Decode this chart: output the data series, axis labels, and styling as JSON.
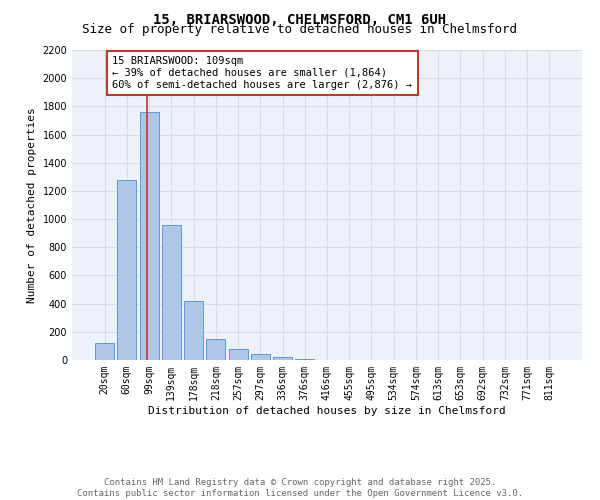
{
  "title_line1": "15, BRIARSWOOD, CHELMSFORD, CM1 6UH",
  "title_line2": "Size of property relative to detached houses in Chelmsford",
  "xlabel": "Distribution of detached houses by size in Chelmsford",
  "ylabel": "Number of detached properties",
  "categories": [
    "20sqm",
    "60sqm",
    "99sqm",
    "139sqm",
    "178sqm",
    "218sqm",
    "257sqm",
    "297sqm",
    "336sqm",
    "376sqm",
    "416sqm",
    "455sqm",
    "495sqm",
    "534sqm",
    "574sqm",
    "613sqm",
    "653sqm",
    "692sqm",
    "732sqm",
    "771sqm",
    "811sqm"
  ],
  "values": [
    120,
    1280,
    1760,
    960,
    420,
    150,
    80,
    40,
    20,
    5,
    0,
    0,
    0,
    0,
    0,
    0,
    0,
    0,
    0,
    0,
    0
  ],
  "bar_color": "#aec6e8",
  "bar_edge_color": "#5b9bd5",
  "vline_color": "#c0392b",
  "annotation_text": "15 BRIARSWOOD: 109sqm\n← 39% of detached houses are smaller (1,864)\n60% of semi-detached houses are larger (2,876) →",
  "annotation_box_color": "#ffffff",
  "annotation_box_edge_color": "#c0392b",
  "ylim": [
    0,
    2200
  ],
  "yticks": [
    0,
    200,
    400,
    600,
    800,
    1000,
    1200,
    1400,
    1600,
    1800,
    2000,
    2200
  ],
  "grid_color": "#d5dde8",
  "bg_color": "#eef2f8",
  "footer_line1": "Contains HM Land Registry data © Crown copyright and database right 2025.",
  "footer_line2": "Contains public sector information licensed under the Open Government Licence v3.0.",
  "title_fontsize": 10,
  "subtitle_fontsize": 9,
  "axis_label_fontsize": 8,
  "tick_fontsize": 7,
  "annotation_fontsize": 7.5,
  "footer_fontsize": 6.5
}
